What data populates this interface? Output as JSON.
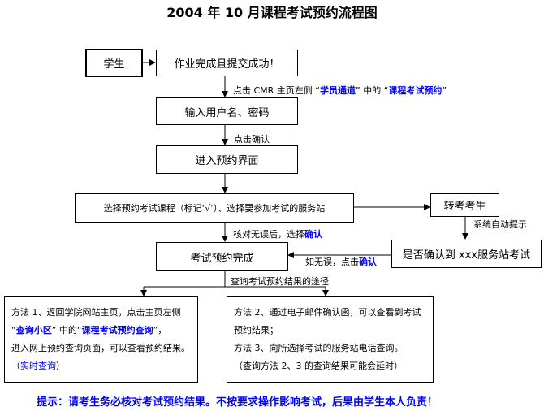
{
  "title": "2004 年 10 月课程考试预约流程图",
  "nodes": {
    "student": "学生",
    "homework": "作业完成且提交成功！",
    "login": "输入用户名、密码",
    "enter": "进入预约界面",
    "select": "选择预约考试课程（标记‘√’）、选择要参加考试的服务站",
    "transfer": "转考考生",
    "confirm_station": "是否确认到 xxx服务站考试",
    "done": "考试预约完成"
  },
  "labels": {
    "step1_a": "点击 CMR 主页左侧 “",
    "step1_b": "学员通道",
    "step1_c": "” 中的 “",
    "step1_d": "课程考试预约",
    "step1_e": "”",
    "step2": "点击确认",
    "check_a": "核对无误后，选择",
    "check_b": "确认",
    "auto": "系统自动提示",
    "ok_a": "如无误，点击",
    "ok_b": "确认",
    "query": "查询考试预约结果的途径"
  },
  "method1": {
    "l1": "方法 1、返回学院网站主页，点击主页左侧",
    "q1": "“",
    "link1": "查询小区",
    "q2": "” 中的“",
    "link2": "课程考试预约查询",
    "q3": "”，",
    "l3": "进入网上预约查询页面，可以查看预约结果。（",
    "link3": "实时查询",
    "l4": "）"
  },
  "method2": {
    "l1": "方法 2、通过电子邮件确认函，可以查看到考试预约结果；",
    "l2": "方法 3、向所选择考试的服务站电话查询。",
    "l3": "（查询方法 2、3 的查询结果可能会延时）"
  },
  "hint": "提示：请考生务必核对考试预约结果。不按要求操作影响考试，后果由学生本人负责！",
  "colors": {
    "link": "#0000ff"
  }
}
